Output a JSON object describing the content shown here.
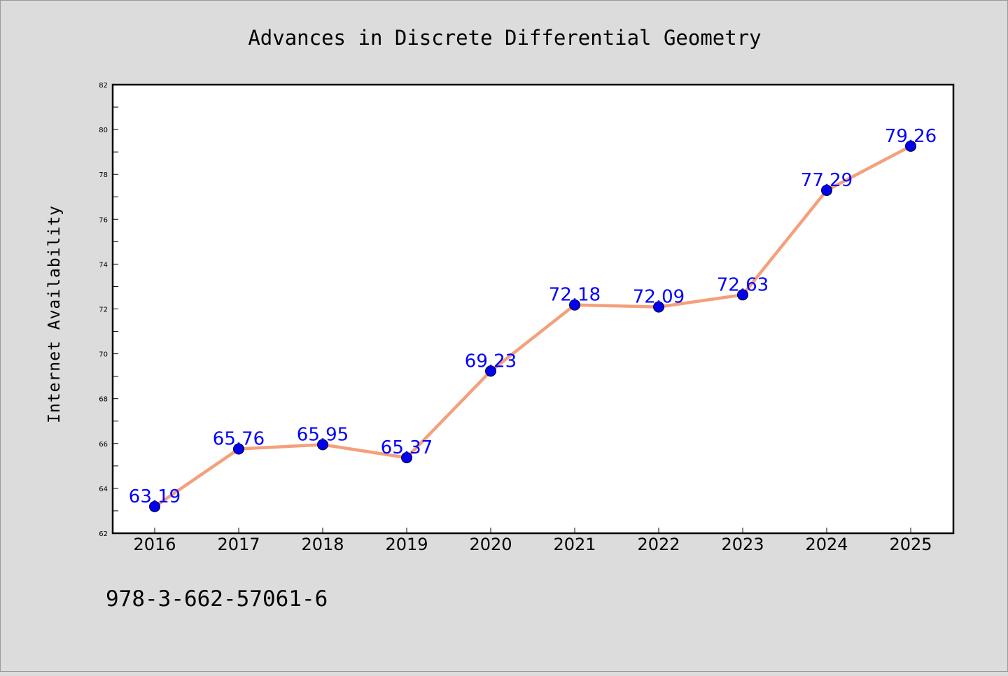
{
  "chart_data": {
    "type": "line",
    "title": "Advances in Discrete Differential Geometry",
    "xlabel": "",
    "ylabel": "Internet Availability",
    "categories": [
      "2016",
      "2017",
      "2018",
      "2019",
      "2020",
      "2021",
      "2022",
      "2023",
      "2024",
      "2025"
    ],
    "values": [
      63.19,
      65.76,
      65.95,
      65.37,
      69.23,
      72.18,
      72.09,
      72.63,
      77.29,
      79.26
    ],
    "data_labels": [
      "63.19",
      "65.76",
      "65.95",
      "65.37",
      "69.23",
      "72.18",
      "72.09",
      "72.63",
      "77.29",
      "79.26"
    ],
    "ylim": [
      62,
      82
    ],
    "y_ticks": [
      "62",
      "64",
      "66",
      "68",
      "70",
      "72",
      "74",
      "76",
      "78",
      "80",
      "82"
    ],
    "grid": false,
    "legend": "none",
    "colors": {
      "line": "#f4a07c",
      "marker": "#0000ee",
      "marker_edge": "#000033",
      "data_label": "#0000ff",
      "page_background": "#dcdcdc",
      "plot_background": "#ffffff"
    }
  },
  "footer": {
    "isbn": "978-3-662-57061-6"
  }
}
